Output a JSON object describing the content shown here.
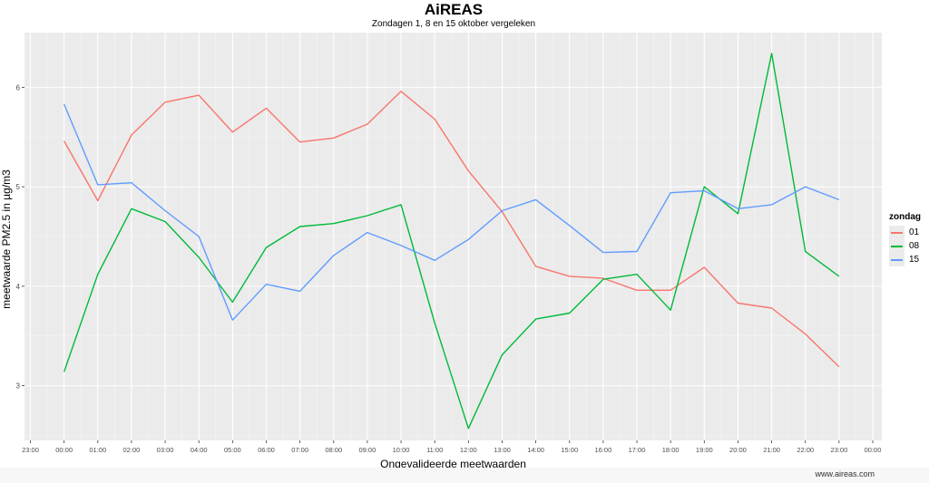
{
  "chart_data": {
    "type": "line",
    "title": "AiREAS",
    "subtitle": "Zondagen 1, 8 en 15 oktober vergeleken",
    "xlabel": "Ongevalideerde meetwaarden",
    "ylabel": "meetwaarde PM2.5 in µg/m3",
    "x_ticks": [
      "23:00",
      "00:00",
      "01:00",
      "02:00",
      "03:00",
      "04:00",
      "05:00",
      "06:00",
      "07:00",
      "08:00",
      "09:00",
      "10:00",
      "11:00",
      "12:00",
      "13:00",
      "14:00",
      "15:00",
      "16:00",
      "17:00",
      "18:00",
      "19:00",
      "20:00",
      "21:00",
      "22:00",
      "23:00",
      "00:00"
    ],
    "y_ticks": [
      3,
      4,
      5,
      6
    ],
    "ylim": [
      2.45,
      6.55
    ],
    "grid": true,
    "legend_title": "zondag",
    "legend_position": "right",
    "series": [
      {
        "name": "01",
        "color": "#F8766D",
        "x": [
          "00:00",
          "01:00",
          "02:00",
          "03:00",
          "04:00",
          "05:00",
          "06:00",
          "07:00",
          "08:00",
          "09:00",
          "10:00",
          "11:00",
          "12:00",
          "13:00",
          "14:00",
          "15:00",
          "16:00",
          "17:00",
          "18:00",
          "19:00",
          "20:00",
          "21:00",
          "22:00",
          "23:00"
        ],
        "values": [
          5.46,
          4.86,
          5.52,
          5.85,
          5.92,
          5.55,
          5.79,
          5.45,
          5.49,
          5.63,
          5.96,
          5.68,
          5.16,
          4.75,
          4.2,
          4.1,
          4.08,
          3.96,
          3.96,
          4.19,
          3.83,
          3.78,
          3.52,
          3.19
        ]
      },
      {
        "name": "08",
        "color": "#00BA38",
        "x": [
          "00:00",
          "01:00",
          "02:00",
          "03:00",
          "04:00",
          "05:00",
          "06:00",
          "07:00",
          "08:00",
          "09:00",
          "10:00",
          "11:00",
          "12:00",
          "13:00",
          "14:00",
          "15:00",
          "16:00",
          "17:00",
          "18:00",
          "19:00",
          "20:00",
          "21:00",
          "22:00",
          "23:00"
        ],
        "values": [
          3.14,
          4.12,
          4.78,
          4.65,
          4.29,
          3.84,
          4.39,
          4.6,
          4.63,
          4.71,
          4.82,
          3.63,
          2.57,
          3.31,
          3.67,
          3.73,
          4.07,
          4.12,
          3.76,
          5.0,
          4.73,
          6.34,
          4.35,
          4.1
        ]
      },
      {
        "name": "15",
        "color": "#619CFF",
        "x": [
          "00:00",
          "01:00",
          "02:00",
          "03:00",
          "04:00",
          "05:00",
          "06:00",
          "07:00",
          "08:00",
          "09:00",
          "10:00",
          "11:00",
          "12:00",
          "13:00",
          "14:00",
          "15:00",
          "16:00",
          "17:00",
          "18:00",
          "19:00",
          "20:00",
          "21:00",
          "22:00",
          "23:00"
        ],
        "values": [
          5.83,
          5.02,
          5.04,
          4.76,
          4.5,
          3.66,
          4.02,
          3.95,
          4.31,
          4.54,
          4.41,
          4.26,
          4.47,
          4.76,
          4.87,
          4.61,
          4.34,
          4.35,
          4.94,
          4.96,
          4.78,
          4.82,
          5.0,
          4.87
        ]
      }
    ]
  },
  "source": "www.aireas.com"
}
